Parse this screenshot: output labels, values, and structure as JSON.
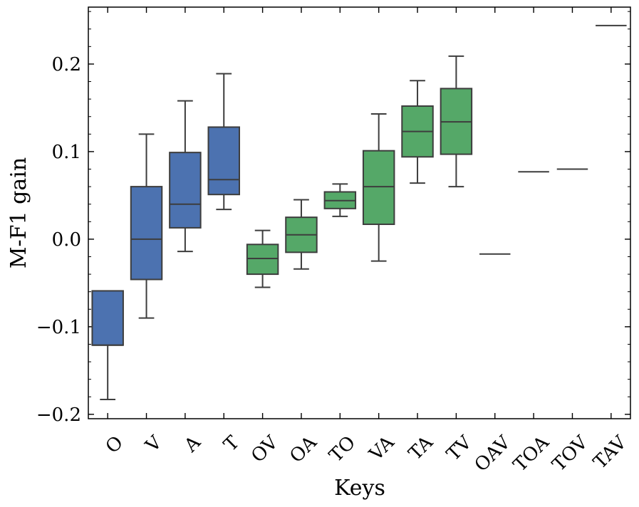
{
  "chart_data": {
    "type": "box",
    "title": "",
    "xlabel": "Keys",
    "ylabel": "M-F1 gain",
    "ylim": [
      -0.205,
      0.265
    ],
    "yticks": [
      {
        "value": -0.2,
        "label": "−0.2"
      },
      {
        "value": -0.1,
        "label": "−0.1"
      },
      {
        "value": 0.0,
        "label": "0.0"
      },
      {
        "value": 0.1,
        "label": "0.1"
      },
      {
        "value": 0.2,
        "label": "0.2"
      }
    ],
    "yminor_step": 0.02,
    "colors": {
      "unimodal": "#4C72B0",
      "multimodal": "#55A868",
      "line": "#3d3d3d"
    },
    "categories": [
      "O",
      "V",
      "A",
      "T",
      "OV",
      "OA",
      "TO",
      "VA",
      "TA",
      "TV",
      "OAV",
      "TOA",
      "TOV",
      "TAV"
    ],
    "boxes": [
      {
        "key": "O",
        "group": "unimodal",
        "whislo": -0.183,
        "q1": -0.121,
        "med": -0.121,
        "q3": -0.059,
        "whishi": -0.059
      },
      {
        "key": "V",
        "group": "unimodal",
        "whislo": -0.09,
        "q1": -0.046,
        "med": 0.0,
        "q3": 0.06,
        "whishi": 0.12
      },
      {
        "key": "A",
        "group": "unimodal",
        "whislo": -0.014,
        "q1": 0.013,
        "med": 0.04,
        "q3": 0.099,
        "whishi": 0.158
      },
      {
        "key": "T",
        "group": "unimodal",
        "whislo": 0.034,
        "q1": 0.051,
        "med": 0.068,
        "q3": 0.128,
        "whishi": 0.189
      },
      {
        "key": "OV",
        "group": "multimodal",
        "whislo": -0.055,
        "q1": -0.04,
        "med": -0.022,
        "q3": -0.006,
        "whishi": 0.01
      },
      {
        "key": "OA",
        "group": "multimodal",
        "whislo": -0.034,
        "q1": -0.015,
        "med": 0.005,
        "q3": 0.025,
        "whishi": 0.045
      },
      {
        "key": "TO",
        "group": "multimodal",
        "whislo": 0.026,
        "q1": 0.035,
        "med": 0.044,
        "q3": 0.054,
        "whishi": 0.063
      },
      {
        "key": "VA",
        "group": "multimodal",
        "whislo": -0.025,
        "q1": 0.017,
        "med": 0.06,
        "q3": 0.101,
        "whishi": 0.143
      },
      {
        "key": "TA",
        "group": "multimodal",
        "whislo": 0.064,
        "q1": 0.094,
        "med": 0.123,
        "q3": 0.152,
        "whishi": 0.181
      },
      {
        "key": "TV",
        "group": "multimodal",
        "whislo": 0.06,
        "q1": 0.097,
        "med": 0.134,
        "q3": 0.172,
        "whishi": 0.209
      },
      {
        "key": "OAV",
        "group": "multimodal",
        "whislo": -0.017,
        "q1": -0.017,
        "med": -0.017,
        "q3": -0.017,
        "whishi": -0.017
      },
      {
        "key": "TOA",
        "group": "multimodal",
        "whislo": 0.077,
        "q1": 0.077,
        "med": 0.077,
        "q3": 0.077,
        "whishi": 0.077
      },
      {
        "key": "TOV",
        "group": "multimodal",
        "whislo": 0.08,
        "q1": 0.08,
        "med": 0.08,
        "q3": 0.08,
        "whishi": 0.08
      },
      {
        "key": "TAV",
        "group": "multimodal",
        "whislo": 0.244,
        "q1": 0.244,
        "med": 0.244,
        "q3": 0.244,
        "whishi": 0.244
      }
    ]
  }
}
